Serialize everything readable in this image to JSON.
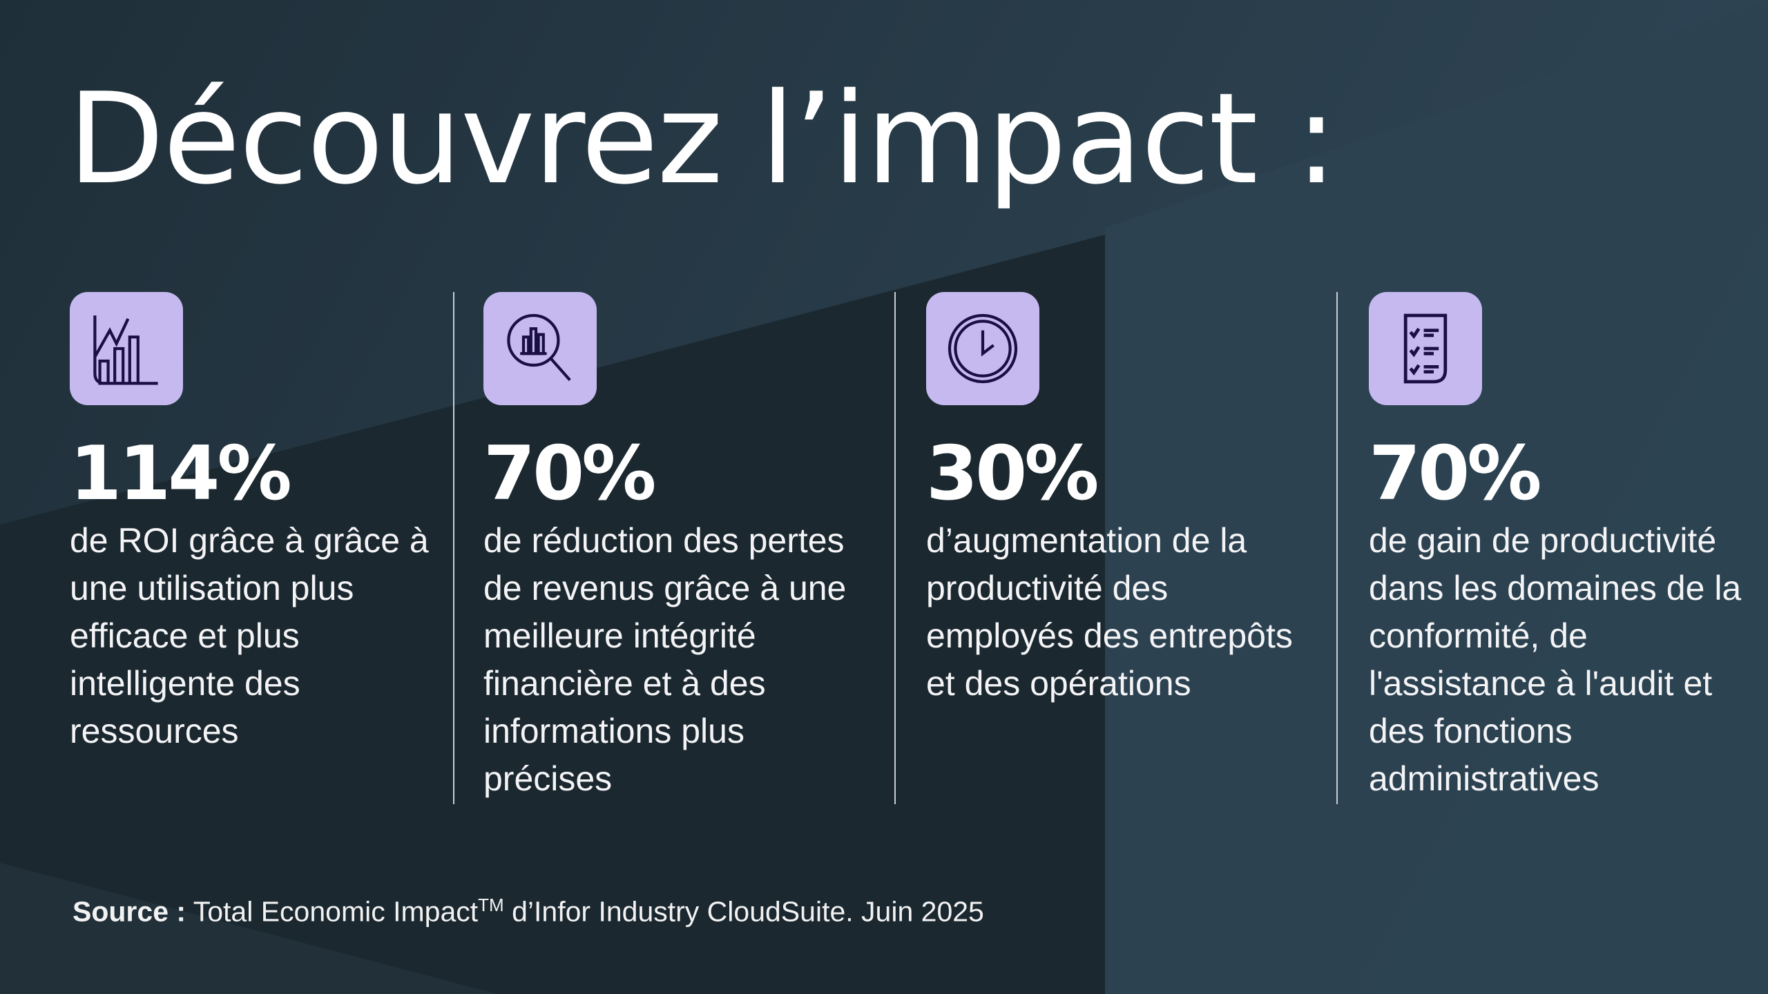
{
  "title": "Découvrez l’impact :",
  "colors": {
    "background": "#263a47",
    "icon_box": "#c5b9f0",
    "icon_stroke": "#1a0f45"
  },
  "stats": [
    {
      "icon": "chart-growth-icon",
      "value": "114%",
      "description": "de ROI grâce à grâce à une utilisation plus efficace et plus intelligente des ressources"
    },
    {
      "icon": "magnifier-chart-icon",
      "value": "70%",
      "description": "de réduction des pertes de revenus grâce à une meilleure intégrité financière et à des informations plus précises"
    },
    {
      "icon": "clock-icon",
      "value": "30%",
      "description": "d’augmentation de la productivité des employés des entrepôts et des opérations"
    },
    {
      "icon": "checklist-icon",
      "value": "70%",
      "description": "de gain de productivité dans les domaines de la conformité, de l'assistance à l'audit et des fonctions administratives"
    }
  ],
  "source": {
    "label": "Source :",
    "text": "Total Economic Impact",
    "trademark": "TM",
    "text_after": "d’Infor Industry CloudSuite. Juin 2025"
  }
}
